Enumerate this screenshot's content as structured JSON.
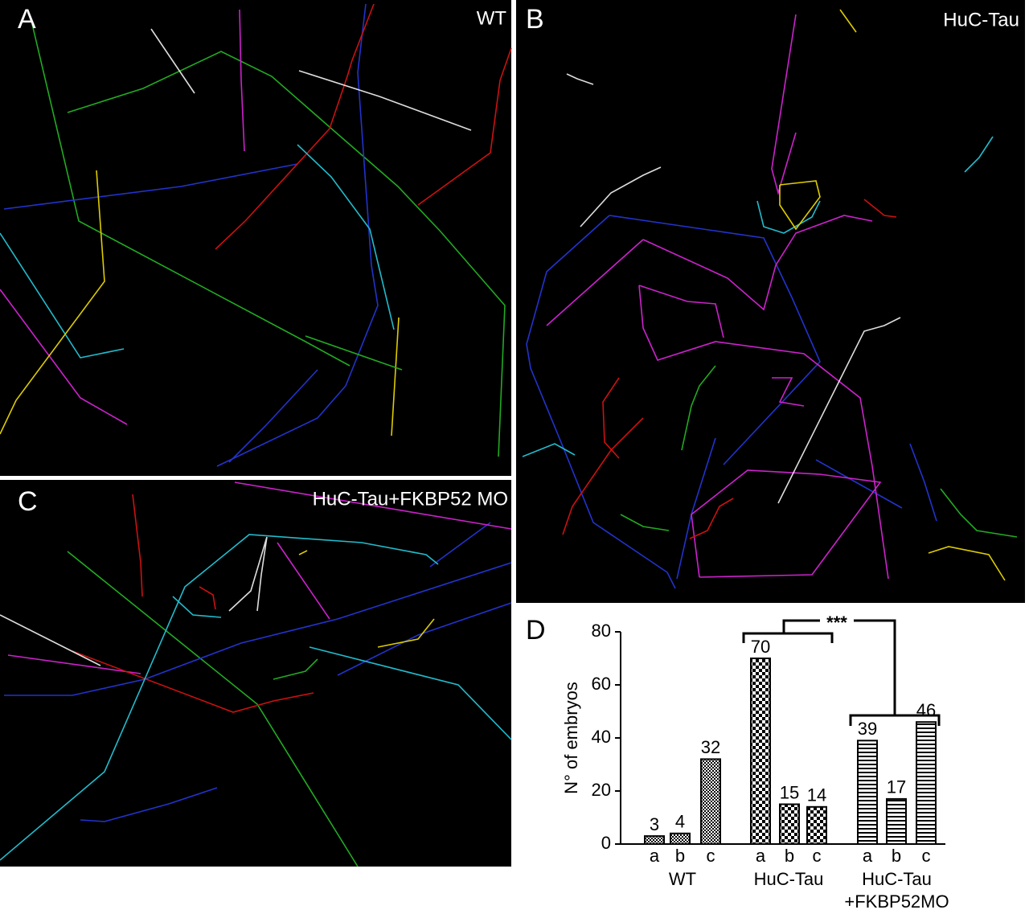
{
  "panels": [
    {
      "label": "A",
      "title": "WT"
    },
    {
      "label": "B",
      "title": "HuC-Tau"
    },
    {
      "label": "C",
      "title": "HuC-Tau+FKBP52 MO"
    }
  ],
  "chart_data": {
    "type": "grouped-bar",
    "panel_label": "D",
    "y_label": "N° of embryos",
    "ylim": [
      0,
      80
    ],
    "yticks": [
      0,
      20,
      40,
      60,
      80
    ],
    "groups": [
      {
        "name_lines": [
          "WT"
        ],
        "categories": [
          "a",
          "b",
          "c"
        ],
        "values": [
          3,
          4,
          32
        ],
        "pattern": "check-small"
      },
      {
        "name_lines": [
          "HuC-Tau"
        ],
        "categories": [
          "a",
          "b",
          "c"
        ],
        "values": [
          70,
          15,
          14
        ],
        "pattern": "check-large"
      },
      {
        "name_lines": [
          "HuC-Tau",
          "+FKBP52MO"
        ],
        "categories": [
          "a",
          "b",
          "c"
        ],
        "values": [
          39,
          17,
          46
        ],
        "pattern": "stripes"
      }
    ],
    "significance": "***"
  }
}
